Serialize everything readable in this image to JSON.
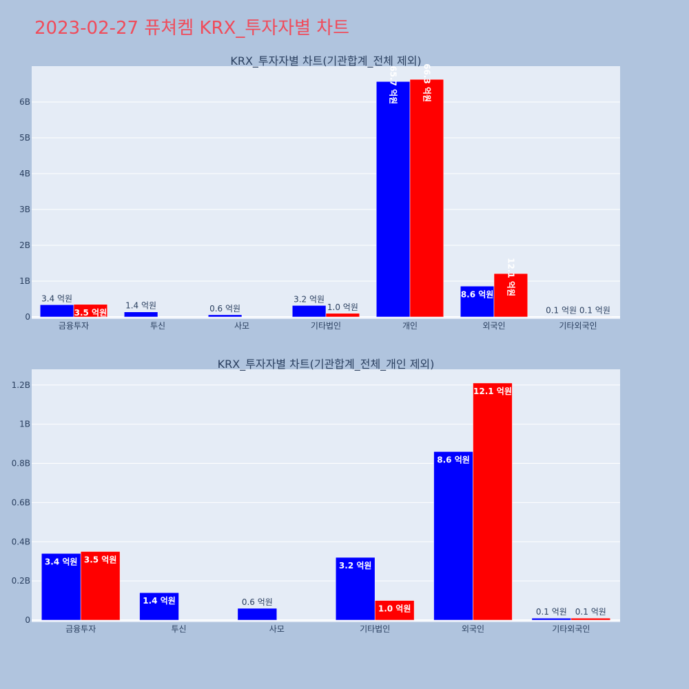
{
  "page_title": "2023-02-27 퓨쳐켐 KRX_투자자별 차트",
  "colors": {
    "background": "#b0c4de",
    "plot_bg": "#e5ecf6",
    "grid": "#ffffff",
    "title": "#f04b5a",
    "text": "#2a3f5f",
    "series1": "#0000ff",
    "series2": "#ff0000"
  },
  "chart_data": [
    {
      "type": "bar",
      "title": "KRX_투자자별 차트(기관합계_전체 제외)",
      "categories": [
        "금융투자",
        "투신",
        "사모",
        "기타법인",
        "개인",
        "외국인",
        "기타외국인"
      ],
      "series": [
        {
          "color": "#0000ff",
          "values": [
            340000000,
            140000000,
            60000000,
            320000000,
            6570000000,
            860000000,
            10000000
          ],
          "labels": [
            "3.4 억원",
            "1.4 억원",
            "0.6 억원",
            "3.2 억원",
            "65.7 억원",
            "8.6 억원",
            "0.1 억원"
          ]
        },
        {
          "color": "#ff0000",
          "values": [
            350000000,
            0,
            0,
            100000000,
            6630000000,
            1210000000,
            10000000
          ],
          "labels": [
            "3.5 억원",
            "",
            "",
            "1.0 억원",
            "66.3 억원",
            "12.1 억원",
            "0.1 억원"
          ]
        }
      ],
      "ylim": [
        0,
        7000000000
      ],
      "yticks": [
        0,
        1000000000,
        2000000000,
        3000000000,
        4000000000,
        5000000000,
        6000000000
      ],
      "yticklabels": [
        "0",
        "1B",
        "2B",
        "3B",
        "4B",
        "5B",
        "6B"
      ],
      "grid": true
    },
    {
      "type": "bar",
      "title": "KRX_투자자별 차트(기관합계_전체_개인 제외)",
      "categories": [
        "금융투자",
        "투신",
        "사모",
        "기타법인",
        "외국인",
        "기타외국인"
      ],
      "series": [
        {
          "color": "#0000ff",
          "values": [
            340000000,
            140000000,
            60000000,
            320000000,
            860000000,
            10000000
          ],
          "labels": [
            "3.4 억원",
            "1.4 억원",
            "0.6 억원",
            "3.2 억원",
            "8.6 억원",
            "0.1 억원"
          ]
        },
        {
          "color": "#ff0000",
          "values": [
            350000000,
            0,
            0,
            100000000,
            1210000000,
            10000000
          ],
          "labels": [
            "3.5 억원",
            "",
            "",
            "1.0 억원",
            "12.1 억원",
            "0.1 억원"
          ]
        }
      ],
      "ylim": [
        0,
        1280000000
      ],
      "yticks": [
        0,
        200000000,
        400000000,
        600000000,
        800000000,
        1000000000,
        1200000000
      ],
      "yticklabels": [
        "0",
        "0.2B",
        "0.4B",
        "0.6B",
        "0.8B",
        "1B",
        "1.2B"
      ],
      "grid": true
    }
  ]
}
